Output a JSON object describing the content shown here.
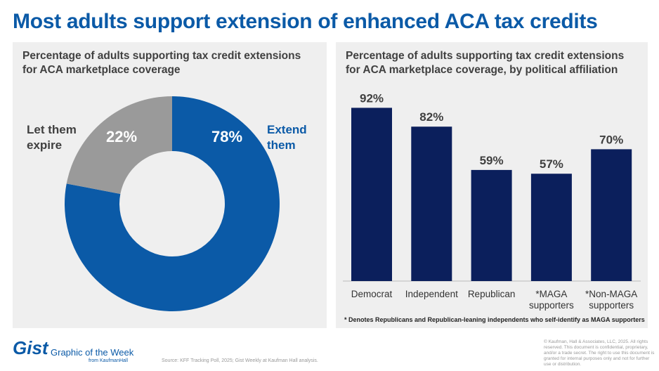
{
  "title": "Most adults support extension of enhanced ACA tax credits",
  "chart_data": [
    {
      "type": "pie",
      "title": "Percentage of adults supporting tax credit extensions for ACA marketplace coverage",
      "categories": [
        "Extend them",
        "Let them expire"
      ],
      "values": [
        78,
        22
      ],
      "labels": [
        "78%",
        "22%"
      ],
      "colors": [
        "#0b5aa7",
        "#9a9a9a"
      ],
      "donut": true
    },
    {
      "type": "bar",
      "title": "Percentage of adults supporting tax credit extensions for ACA marketplace coverage, by political affiliation",
      "categories": [
        "Democrat",
        "Independent",
        "Republican",
        "*MAGA supporters",
        "*Non-MAGA supporters"
      ],
      "values": [
        92,
        82,
        59,
        57,
        70
      ],
      "labels": [
        "92%",
        "82%",
        "59%",
        "57%",
        "70%"
      ],
      "color": "#0b1f5c",
      "ylim": [
        0,
        100
      ],
      "grid": false,
      "note": "* Denotes Republicans and Republican-leaning independents who self-identify as MAGA supporters"
    }
  ],
  "footer": {
    "logo": "Gist",
    "subtitle": "Graphic of the Week",
    "from": "from KaufmanHall",
    "source": "Source: KFF Tracking Poll, 2025; Gist Weekly at Kaufman Hall analysis.",
    "copyright": "© Kaufman, Hall & Associates, LLC, 2025. All rights reserved. This document is confidential, proprietary, and/or a trade secret. The right to use this document is granted for internal purposes only and not for further use or distribution."
  }
}
